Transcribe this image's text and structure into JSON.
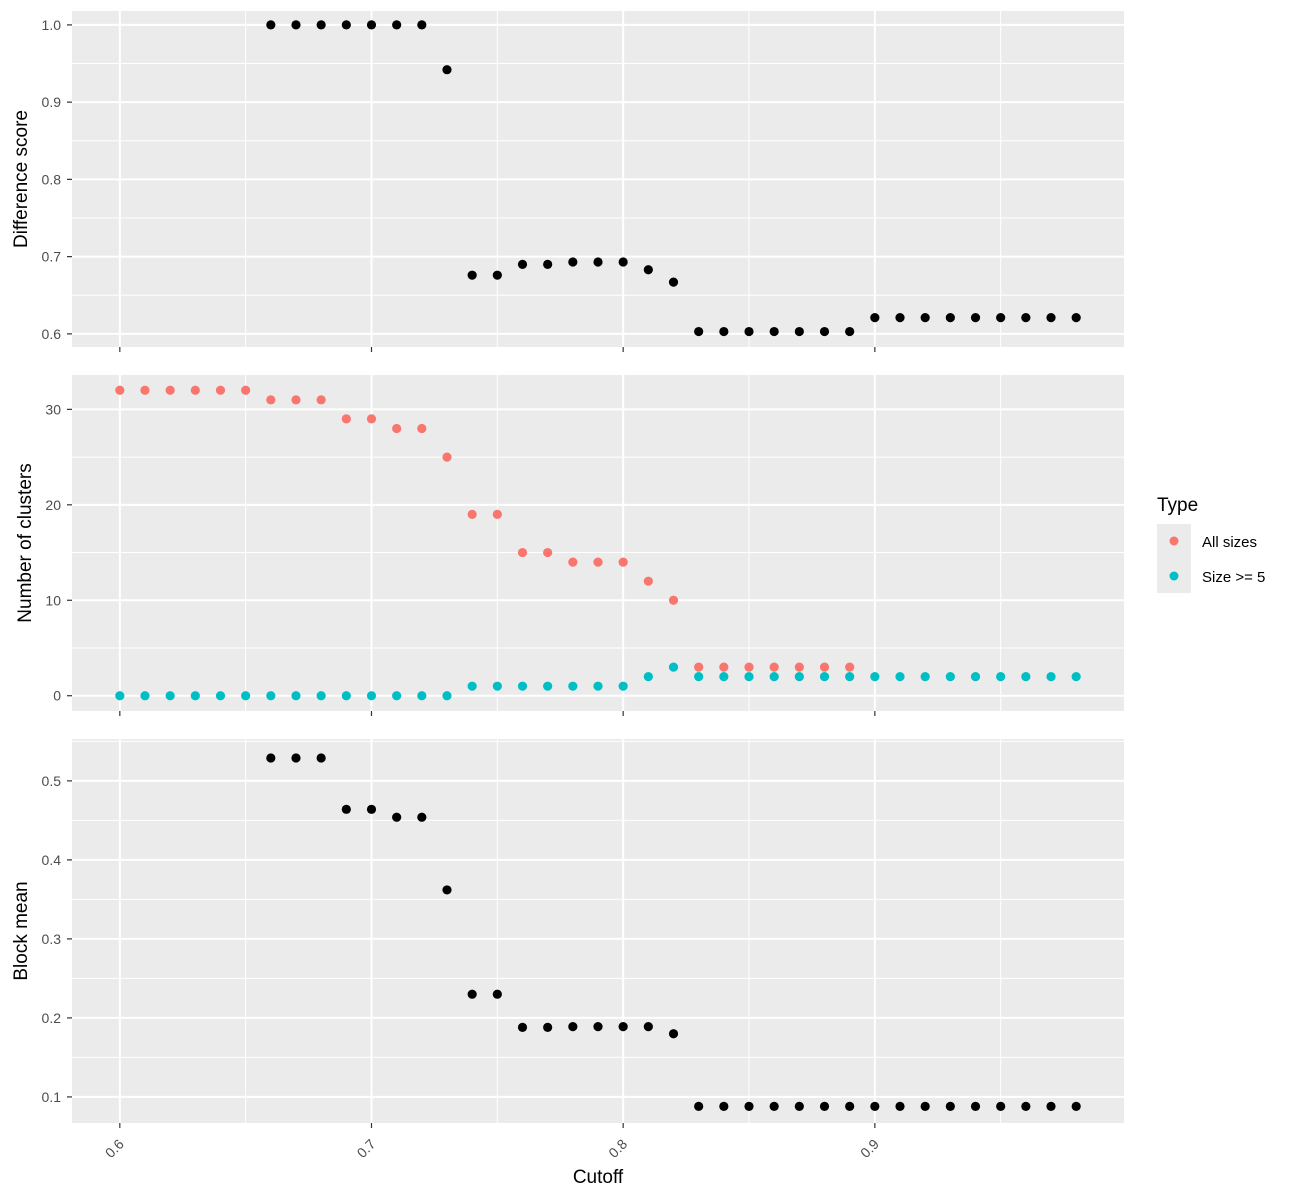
{
  "chart_data": {
    "type": "scatter",
    "x_axis": {
      "label": "Cutoff",
      "range": [
        0.581,
        0.999
      ],
      "ticks": [
        0.6,
        0.7,
        0.8,
        0.9
      ],
      "tick_labels": [
        "0.6",
        "0.7",
        "0.8",
        "0.9"
      ]
    },
    "legend": {
      "title": "Type",
      "position": "right",
      "entries": [
        {
          "label": "All sizes",
          "color": "#F8766D"
        },
        {
          "label": "Size >= 5",
          "color": "#00BFC4"
        }
      ]
    },
    "panels": [
      {
        "ylabel": "Difference score",
        "ylim": [
          0.583,
          1.018
        ],
        "yticks": [
          0.6,
          0.7,
          0.8,
          0.9,
          1.0
        ],
        "ytick_labels": [
          "0.6",
          "0.7",
          "0.8",
          "0.9",
          "1.0"
        ],
        "series": [
          {
            "color": "#000000",
            "x": [
              0.66,
              0.67,
              0.68,
              0.69,
              0.7,
              0.71,
              0.72,
              0.73,
              0.74,
              0.75,
              0.76,
              0.77,
              0.78,
              0.79,
              0.8,
              0.81,
              0.82,
              0.83,
              0.84,
              0.85,
              0.86,
              0.87,
              0.88,
              0.89,
              0.9,
              0.91,
              0.92,
              0.93,
              0.94,
              0.95,
              0.96,
              0.97,
              0.98
            ],
            "y": [
              1.0,
              1.0,
              1.0,
              1.0,
              1.0,
              1.0,
              1.0,
              0.942,
              0.676,
              0.676,
              0.69,
              0.69,
              0.693,
              0.693,
              0.693,
              0.683,
              0.667,
              0.603,
              0.603,
              0.603,
              0.603,
              0.603,
              0.603,
              0.603,
              0.621,
              0.621,
              0.621,
              0.621,
              0.621,
              0.621,
              0.621,
              0.621,
              0.621
            ]
          }
        ]
      },
      {
        "ylabel": "Number of clusters",
        "ylim": [
          -1.6,
          33.6
        ],
        "yticks": [
          0,
          10,
          20,
          30
        ],
        "ytick_labels": [
          "0",
          "10",
          "20",
          "30"
        ],
        "series": [
          {
            "name": "All sizes",
            "color": "#F8766D",
            "x": [
              0.6,
              0.61,
              0.62,
              0.63,
              0.64,
              0.65,
              0.66,
              0.67,
              0.68,
              0.69,
              0.7,
              0.71,
              0.72,
              0.73,
              0.74,
              0.75,
              0.76,
              0.77,
              0.78,
              0.79,
              0.8,
              0.81,
              0.82,
              0.83,
              0.84,
              0.85,
              0.86,
              0.87,
              0.88,
              0.89
            ],
            "y": [
              32,
              32,
              32,
              32,
              32,
              32,
              31,
              31,
              31,
              29,
              29,
              28,
              28,
              25,
              19,
              19,
              15,
              15,
              14,
              14,
              14,
              12,
              10,
              3,
              3,
              3,
              3,
              3,
              3,
              3
            ]
          },
          {
            "name": "Size >= 5",
            "color": "#00BFC4",
            "x": [
              0.6,
              0.61,
              0.62,
              0.63,
              0.64,
              0.65,
              0.66,
              0.67,
              0.68,
              0.69,
              0.7,
              0.71,
              0.72,
              0.73,
              0.74,
              0.75,
              0.76,
              0.77,
              0.78,
              0.79,
              0.8,
              0.81,
              0.82,
              0.83,
              0.84,
              0.85,
              0.86,
              0.87,
              0.88,
              0.89,
              0.9,
              0.91,
              0.92,
              0.93,
              0.94,
              0.95,
              0.96,
              0.97,
              0.98
            ],
            "y": [
              0,
              0,
              0,
              0,
              0,
              0,
              0,
              0,
              0,
              0,
              0,
              0,
              0,
              0,
              1,
              1,
              1,
              1,
              1,
              1,
              1,
              2,
              3,
              2,
              2,
              2,
              2,
              2,
              2,
              2,
              2,
              2,
              2,
              2,
              2,
              2,
              2,
              2,
              2
            ]
          }
        ]
      },
      {
        "ylabel": "Block mean",
        "ylim": [
          0.067,
          0.553
        ],
        "yticks": [
          0.1,
          0.2,
          0.3,
          0.4,
          0.5
        ],
        "ytick_labels": [
          "0.1",
          "0.2",
          "0.3",
          "0.4",
          "0.5"
        ],
        "series": [
          {
            "color": "#000000",
            "x": [
              0.66,
              0.67,
              0.68,
              0.69,
              0.7,
              0.71,
              0.72,
              0.73,
              0.74,
              0.75,
              0.76,
              0.77,
              0.78,
              0.79,
              0.8,
              0.81,
              0.82,
              0.83,
              0.84,
              0.85,
              0.86,
              0.87,
              0.88,
              0.89,
              0.9,
              0.91,
              0.92,
              0.93,
              0.94,
              0.95,
              0.96,
              0.97,
              0.98
            ],
            "y": [
              0.529,
              0.529,
              0.529,
              0.464,
              0.464,
              0.454,
              0.454,
              0.362,
              0.23,
              0.23,
              0.188,
              0.188,
              0.189,
              0.189,
              0.189,
              0.189,
              0.18,
              0.088,
              0.088,
              0.088,
              0.088,
              0.088,
              0.088,
              0.088,
              0.088,
              0.088,
              0.088,
              0.088,
              0.088,
              0.088,
              0.088,
              0.088,
              0.088
            ]
          }
        ]
      }
    ]
  }
}
